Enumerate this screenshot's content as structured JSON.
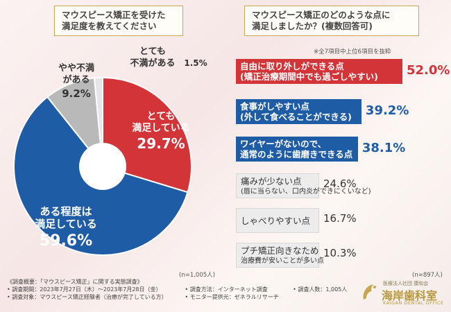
{
  "left": {
    "title_lines": [
      "マウスピース矯正を受けた",
      "満足度を教えてください"
    ],
    "n_label": "(n=1,005人)"
  },
  "right": {
    "title_lines": [
      "マウスピース矯正のどのような点に",
      "満足しましたか？(複数回答可)"
    ],
    "note": "※全7項目中上位6項目を抜粋",
    "n_label": "(n=897人)"
  },
  "colors": {
    "red": "#d23438",
    "blue": "#1f5ca6",
    "grey": "#b9b9b9",
    "light": "#e6e6e6"
  },
  "chart_data": [
    {
      "type": "pie",
      "title": "マウスピース矯正を受けた満足度を教えてください",
      "slices": [
        {
          "label_lines": [
            "とても",
            "満足している"
          ],
          "value": 29.7,
          "display": "29.7%",
          "color": "#d23438"
        },
        {
          "label_lines": [
            "ある程度は",
            "満足している"
          ],
          "value": 59.6,
          "display": "59.6%",
          "color": "#1f5ca6"
        },
        {
          "label_lines": [
            "やや不満",
            "がある"
          ],
          "value": 9.2,
          "display": "9.2%",
          "color": "#b9b9b9"
        },
        {
          "label_lines": [
            "とても",
            "不満がある"
          ],
          "value": 1.5,
          "display": "1.5%",
          "color": "#e6e6e6"
        }
      ]
    },
    {
      "type": "bar",
      "title": "マウスピース矯正のどのような点に満足しましたか？(複数回答可)",
      "items": [
        {
          "line1": "自由に取り外しができる点",
          "line2": "(矯正治療期間中でも過ごしやすい)",
          "value": 52.0,
          "display": "52.0%",
          "style": "red"
        },
        {
          "line1": "食事がしやすい点",
          "line2": "(外して食べることができる)",
          "value": 39.2,
          "display": "39.2%",
          "style": "blue"
        },
        {
          "line1": "ワイヤーがないので、",
          "line2": "通常のように歯磨きできる点",
          "value": 38.1,
          "display": "38.1%",
          "style": "blue"
        },
        {
          "line1": "痛みが少ない点",
          "line2": "(唇に当らない、口内炎ができにくいなど)",
          "value": 24.6,
          "display": "24.6%",
          "style": "grey"
        },
        {
          "line1": "しゃべりやすい点",
          "line2": "",
          "value": 16.7,
          "display": "16.7%",
          "style": "grey"
        },
        {
          "line1": "プチ矯正向きなため",
          "line2": "治療費が安いことが多い点",
          "value": 10.3,
          "display": "10.3%",
          "style": "grey"
        }
      ]
    }
  ],
  "footer": {
    "heading": "《調査概要：「マウスピース矯正」に関する実態調査》",
    "period": "• 調査期間：2023年7月27日（木）～2023年7月28日（金）",
    "method": "• 調査方法：インターネット調査",
    "people": "• 調査人数：1,005人",
    "target": "• 調査対象：マウスピース矯正経験者（治療が完了している方）",
    "provider": "• モニター提供元：ゼネラルリサーチ"
  },
  "logo": {
    "sub": "医療法人社団 康和会",
    "name": "海岸歯科室",
    "english": "KAIGAN DENTAL OFFICE"
  }
}
